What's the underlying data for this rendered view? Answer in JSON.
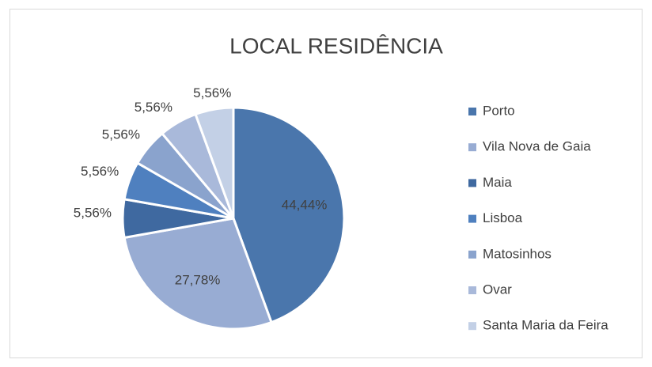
{
  "chart_data": {
    "type": "pie",
    "title": "LOCAL RESIDÊNCIA",
    "categories": [
      "Porto",
      "Vila Nova de Gaia",
      "Maia",
      "Lisboa",
      "Matosinhos",
      "Ovar",
      "Santa Maria da Feira"
    ],
    "values": [
      44.44,
      27.78,
      5.56,
      5.56,
      5.56,
      5.56,
      5.56
    ],
    "value_labels": [
      "44,44%",
      "27,78%",
      "5,56%",
      "5,56%",
      "5,56%",
      "5,56%",
      "5,56%"
    ],
    "colors": [
      "#4a76ac",
      "#98acd3",
      "#3f69a0",
      "#4f80bf",
      "#8aa3cd",
      "#a9b9da",
      "#c3d0e6"
    ],
    "legend": "right"
  }
}
